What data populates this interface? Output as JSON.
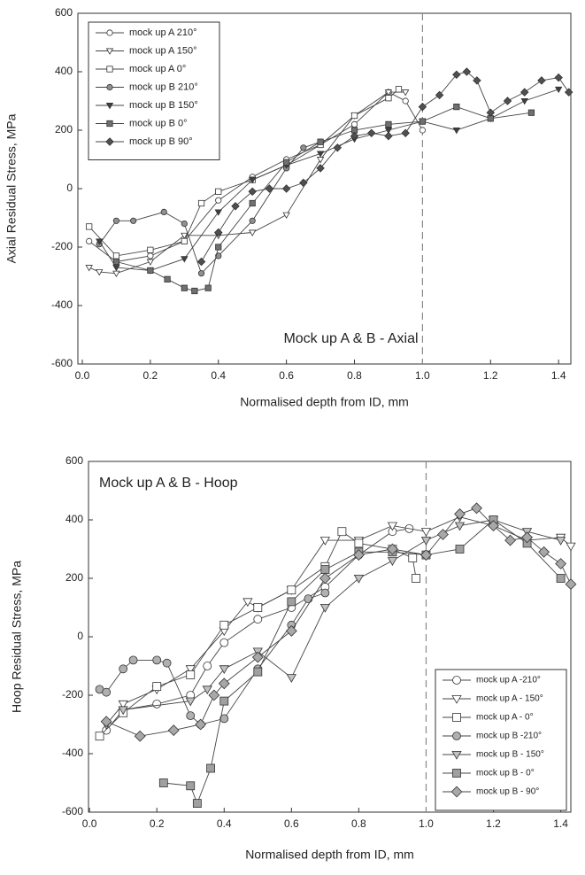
{
  "chart_data": [
    {
      "type": "line",
      "annotation": "Mock up A & B - Axial",
      "x_label": "Normalised depth from ID, mm",
      "y_label": "Axial Residual Stress, MPa",
      "xlim": [
        -0.013,
        1.436
      ],
      "ylim": [
        -600,
        600
      ],
      "xticks": [
        {
          "value": 0,
          "label": "0.0"
        },
        {
          "value": 0.2,
          "label": "0.2"
        },
        {
          "value": 0.4,
          "label": "0.4"
        },
        {
          "value": 0.6,
          "label": "0.6"
        },
        {
          "value": 0.8,
          "label": "0.8"
        },
        {
          "value": 1,
          "label": "1.0"
        },
        {
          "value": 1.2,
          "label": "1.2"
        },
        {
          "value": 1.4,
          "label": "1.4"
        }
      ],
      "yticks": [
        -600,
        -400,
        -200,
        0,
        200,
        400,
        600
      ],
      "reference_x": 1.0,
      "legend": "upper left",
      "series": [
        {
          "name": "mock up A 210°",
          "marker": "circle",
          "color": "#ffffff",
          "x": [
            0.02,
            0.1,
            0.2,
            0.3,
            0.4,
            0.5,
            0.6,
            0.7,
            0.8,
            0.9,
            0.95,
            1.0
          ],
          "values": [
            -180,
            -250,
            -230,
            -180,
            -40,
            40,
            100,
            150,
            220,
            330,
            300,
            200
          ]
        },
        {
          "name": "mock up A 150°",
          "marker": "triangle",
          "color": "#ffffff",
          "x": [
            0.02,
            0.05,
            0.1,
            0.2,
            0.3,
            0.4,
            0.5,
            0.6,
            0.7,
            0.8,
            0.9,
            0.95
          ],
          "values": [
            -270,
            -285,
            -290,
            -250,
            -160,
            -160,
            -150,
            -90,
            100,
            250,
            330,
            330
          ]
        },
        {
          "name": "mock up A  0°",
          "marker": "square",
          "color": "#ffffff",
          "x": [
            0.02,
            0.1,
            0.2,
            0.3,
            0.35,
            0.4,
            0.5,
            0.6,
            0.7,
            0.8,
            0.9,
            0.93
          ],
          "values": [
            -130,
            -230,
            -210,
            -180,
            -50,
            -10,
            30,
            80,
            150,
            250,
            310,
            340
          ]
        },
        {
          "name": "mock up B 210°",
          "marker": "circle",
          "color": "#909090",
          "x": [
            0.05,
            0.1,
            0.15,
            0.24,
            0.3,
            0.35,
            0.4,
            0.5,
            0.6,
            0.65,
            0.7
          ],
          "values": [
            -190,
            -110,
            -110,
            -80,
            -120,
            -290,
            -230,
            -110,
            70,
            140,
            160
          ]
        },
        {
          "name": "mock up B 150°",
          "marker": "triangle",
          "color": "#404040",
          "x": [
            0.05,
            0.1,
            0.2,
            0.3,
            0.4,
            0.5,
            0.6,
            0.7,
            0.8,
            0.9,
            1.0,
            1.1,
            1.2,
            1.3,
            1.4
          ],
          "values": [
            -180,
            -270,
            -280,
            -240,
            -80,
            30,
            80,
            120,
            170,
            200,
            230,
            200,
            240,
            300,
            340
          ]
        },
        {
          "name": "mock up B  0°",
          "marker": "square",
          "color": "#707070",
          "x": [
            0.1,
            0.2,
            0.25,
            0.3,
            0.33,
            0.37,
            0.4,
            0.5,
            0.6,
            0.7,
            0.8,
            0.9,
            1.0,
            1.1,
            1.2,
            1.32
          ],
          "values": [
            -250,
            -280,
            -310,
            -340,
            -350,
            -340,
            -200,
            -50,
            90,
            160,
            200,
            220,
            230,
            280,
            240,
            260
          ]
        },
        {
          "name": "mock up B 90°",
          "marker": "diamond",
          "color": "#505050",
          "x": [
            0.35,
            0.4,
            0.45,
            0.5,
            0.55,
            0.6,
            0.65,
            0.7,
            0.75,
            0.8,
            0.85,
            0.9,
            0.95,
            1.0,
            1.05,
            1.1,
            1.13,
            1.16,
            1.2,
            1.25,
            1.3,
            1.35,
            1.4,
            1.43
          ],
          "values": [
            -250,
            -150,
            -60,
            -10,
            0,
            0,
            20,
            70,
            140,
            180,
            190,
            180,
            190,
            280,
            320,
            390,
            400,
            370,
            260,
            300,
            330,
            370,
            380,
            330
          ]
        }
      ]
    },
    {
      "type": "line",
      "annotation": "Mock up A & B - Hoop",
      "x_label": "Normalised depth from ID, mm",
      "y_label": "Hoop Residual Stress, MPa",
      "xlim": [
        -0.003,
        1.43
      ],
      "ylim": [
        -600,
        600
      ],
      "xticks": [
        {
          "value": 0,
          "label": "0.0"
        },
        {
          "value": 0.2,
          "label": "0.2"
        },
        {
          "value": 0.4,
          "label": "0.4"
        },
        {
          "value": 0.6,
          "label": "0.6"
        },
        {
          "value": 0.8,
          "label": "0.8"
        },
        {
          "value": 1,
          "label": "1.0"
        },
        {
          "value": 1.2,
          "label": "1.2"
        },
        {
          "value": 1.4,
          "label": "1.4"
        }
      ],
      "yticks": [
        -600,
        -400,
        -200,
        0,
        200,
        400,
        600
      ],
      "reference_x": 1.0,
      "legend": "lower right",
      "series": [
        {
          "name": "mock up A -210°",
          "marker": "circle",
          "color": "#ffffff",
          "x": [
            0.05,
            0.1,
            0.2,
            0.3,
            0.35,
            0.4,
            0.5,
            0.6,
            0.7,
            0.8,
            0.9,
            0.95
          ],
          "values": [
            -320,
            -250,
            -230,
            -200,
            -100,
            -20,
            60,
            100,
            170,
            280,
            360,
            370
          ]
        },
        {
          "name": "mock up A - 150°",
          "marker": "triangle",
          "color": "#ffffff",
          "x": [
            0.05,
            0.1,
            0.2,
            0.3,
            0.4,
            0.47,
            0.5,
            0.6,
            0.7,
            0.8,
            0.9,
            1.0,
            1.1,
            1.2,
            1.3,
            1.4,
            1.43
          ],
          "values": [
            -300,
            -230,
            -180,
            -110,
            20,
            120,
            100,
            160,
            330,
            330,
            380,
            360,
            410,
            380,
            330,
            340,
            310
          ]
        },
        {
          "name": "mock up A - 0°",
          "marker": "square",
          "color": "#ffffff",
          "x": [
            0.03,
            0.1,
            0.2,
            0.3,
            0.4,
            0.5,
            0.6,
            0.7,
            0.75,
            0.8,
            0.9,
            0.96,
            0.97
          ],
          "values": [
            -340,
            -260,
            -170,
            -130,
            40,
            100,
            160,
            240,
            360,
            320,
            300,
            270,
            200
          ]
        },
        {
          "name": "mock up B -210°",
          "marker": "circle",
          "color": "#b0b0b0",
          "x": [
            0.03,
            0.05,
            0.1,
            0.13,
            0.2,
            0.23,
            0.3,
            0.33,
            0.4,
            0.5,
            0.6,
            0.65,
            0.7
          ],
          "values": [
            -180,
            -190,
            -110,
            -80,
            -80,
            -90,
            -270,
            -300,
            -280,
            -110,
            40,
            130,
            150
          ]
        },
        {
          "name": "mock up B - 150°",
          "marker": "triangle",
          "color": "#c0c0c0",
          "x": [
            0.1,
            0.3,
            0.35,
            0.4,
            0.5,
            0.6,
            0.7,
            0.8,
            0.9,
            1.0,
            1.1,
            1.2,
            1.3,
            1.4
          ],
          "values": [
            -250,
            -220,
            -180,
            -110,
            -50,
            -140,
            100,
            200,
            260,
            330,
            380,
            400,
            360,
            330
          ]
        },
        {
          "name": "mock up B - 0°",
          "marker": "square",
          "color": "#a0a0a0",
          "x": [
            0.22,
            0.3,
            0.32,
            0.36,
            0.4,
            0.5,
            0.6,
            0.7,
            0.8,
            0.9,
            1.0,
            1.1,
            1.2,
            1.3,
            1.4
          ],
          "values": [
            -500,
            -510,
            -570,
            -450,
            -220,
            -120,
            120,
            230,
            290,
            290,
            280,
            300,
            400,
            320,
            200
          ]
        },
        {
          "name": "mock up B - 90°",
          "marker": "diamond",
          "color": "#a8a8a8",
          "x": [
            0.05,
            0.15,
            0.25,
            0.33,
            0.37,
            0.4,
            0.5,
            0.6,
            0.7,
            0.8,
            0.9,
            1.0,
            1.05,
            1.1,
            1.15,
            1.2,
            1.25,
            1.3,
            1.35,
            1.4,
            1.43
          ],
          "values": [
            -290,
            -340,
            -320,
            -300,
            -200,
            -160,
            -70,
            20,
            200,
            280,
            300,
            280,
            350,
            420,
            440,
            380,
            330,
            340,
            290,
            250,
            180
          ]
        }
      ]
    }
  ]
}
